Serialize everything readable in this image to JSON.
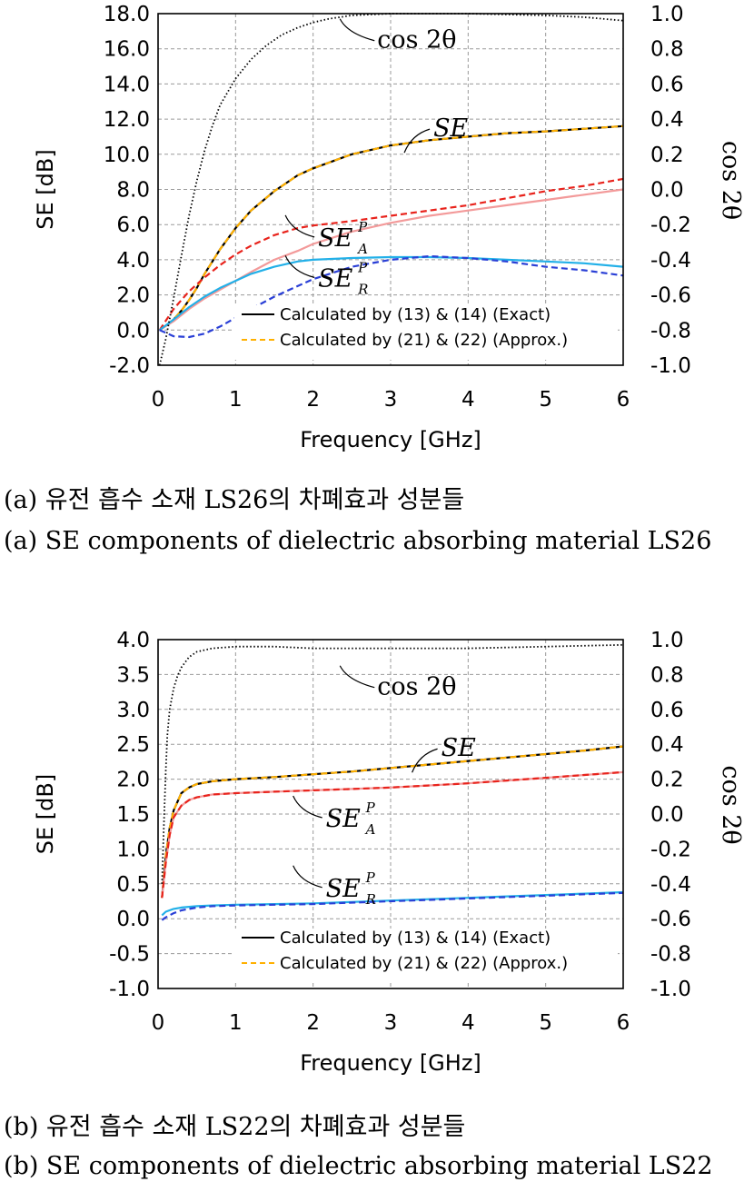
{
  "figures": [
    {
      "caption_ko": "(a) 유전 흡수 소재 LS26의 차폐효과 성분들",
      "caption_en": "(a) SE components of dielectric absorbing material LS26",
      "chart_data": {
        "type": "line",
        "xlabel": "Frequency [GHz]",
        "ylabel": "SE [dB]",
        "y2label": "cos 2θ",
        "xlim": [
          0,
          6
        ],
        "ylim": [
          -2,
          18
        ],
        "y2lim": [
          -1,
          1
        ],
        "xticks": [
          "0",
          "1",
          "2",
          "3",
          "4",
          "5",
          "6"
        ],
        "yticks": [
          "18.0",
          "16.0",
          "14.0",
          "12.0",
          "10.0",
          "8.0",
          "6.0",
          "4.0",
          "2.0",
          "0.0",
          "-2.0"
        ],
        "y2ticks": [
          "1.0",
          "0.8",
          "0.6",
          "0.4",
          "0.2",
          "0.0",
          "-0.2",
          "-0.4",
          "-0.6",
          "-0.8",
          "-1.0"
        ],
        "grid": true,
        "legend": {
          "placement": "bottom-right",
          "entries": [
            "Calculated by (13) & (14) (Exact)",
            "Calculated by (21) & (22) (Approx.)"
          ]
        },
        "annotations": [
          {
            "text": "cos 2θ",
            "x": 2.3,
            "y": 17.6
          },
          {
            "text": "SE",
            "x": 3.2,
            "y": 10.5
          },
          {
            "text": "SE_A^P",
            "x": 1.9,
            "y": 5.5
          },
          {
            "text": "SE_R^P",
            "x": 1.9,
            "y": 3.2
          }
        ],
        "series": [
          {
            "id": "se_exact",
            "color": "#000000",
            "style": "solid",
            "axis": "left",
            "x": [
              0.02,
              0.1,
              0.2,
              0.3,
              0.4,
              0.5,
              0.6,
              0.8,
              1,
              1.2,
              1.5,
              1.8,
              2,
              2.5,
              3,
              3.5,
              4,
              4.5,
              5,
              5.5,
              6
            ],
            "y": [
              0,
              0.25,
              0.6,
              1.1,
              1.7,
              2.4,
              3.2,
              4.6,
              5.8,
              6.8,
              7.9,
              8.8,
              9.2,
              10,
              10.5,
              10.8,
              11,
              11.2,
              11.3,
              11.45,
              11.6
            ]
          },
          {
            "id": "se_approx",
            "color": "#FFB000",
            "style": "dashed",
            "axis": "left",
            "x": [
              0.02,
              0.1,
              0.2,
              0.3,
              0.4,
              0.5,
              0.6,
              0.8,
              1,
              1.2,
              1.5,
              1.8,
              2,
              2.5,
              3,
              3.5,
              4,
              4.5,
              5,
              5.5,
              6
            ],
            "y": [
              0,
              0.25,
              0.6,
              1.1,
              1.7,
              2.4,
              3.2,
              4.6,
              5.8,
              6.8,
              7.9,
              8.8,
              9.2,
              10,
              10.5,
              10.8,
              11,
              11.2,
              11.3,
              11.45,
              11.6
            ]
          },
          {
            "id": "sea_exact",
            "color": "#F39A9A",
            "style": "solid",
            "axis": "left",
            "x": [
              0.02,
              0.2,
              0.4,
              0.6,
              0.8,
              1,
              1.2,
              1.5,
              1.8,
              2,
              2.5,
              3,
              3.5,
              4,
              4.5,
              5,
              5.5,
              6
            ],
            "y": [
              0,
              0.5,
              1.2,
              1.8,
              2.3,
              2.8,
              3.3,
              4,
              4.5,
              4.9,
              5.6,
              6.1,
              6.5,
              6.8,
              7.1,
              7.4,
              7.7,
              8.0
            ]
          },
          {
            "id": "sea_approx",
            "color": "#E8231C",
            "style": "dashed",
            "axis": "left",
            "x": [
              0.02,
              0.2,
              0.4,
              0.6,
              0.8,
              1,
              1.2,
              1.5,
              1.8,
              2,
              2.5,
              3,
              3.5,
              4,
              4.5,
              5,
              5.5,
              6
            ],
            "y": [
              0,
              1.2,
              2.2,
              3.0,
              3.7,
              4.3,
              4.8,
              5.4,
              5.8,
              5.95,
              6.2,
              6.5,
              6.8,
              7.1,
              7.5,
              7.9,
              8.2,
              8.6
            ]
          },
          {
            "id": "ser_exact",
            "color": "#22B0E8",
            "style": "solid",
            "axis": "left",
            "x": [
              0.02,
              0.2,
              0.4,
              0.6,
              0.8,
              1,
              1.2,
              1.5,
              1.8,
              2,
              2.5,
              3,
              3.5,
              4,
              4.5,
              5,
              5.5,
              6
            ],
            "y": [
              0,
              0.6,
              1.3,
              1.9,
              2.4,
              2.8,
              3.2,
              3.6,
              3.9,
              4.0,
              4.1,
              4.15,
              4.15,
              4.1,
              4.0,
              3.9,
              3.8,
              3.6
            ]
          },
          {
            "id": "ser_approx",
            "color": "#2A3FD6",
            "style": "dashed",
            "axis": "left",
            "x": [
              0.02,
              0.2,
              0.4,
              0.6,
              0.8,
              1,
              1.2,
              1.5,
              1.8,
              2,
              2.5,
              3,
              3.5,
              4,
              4.5,
              5,
              5.5,
              6
            ],
            "y": [
              0,
              -0.35,
              -0.4,
              -0.2,
              0.2,
              0.7,
              1.2,
              1.9,
              2.5,
              2.9,
              3.6,
              4.0,
              4.2,
              4.1,
              3.9,
              3.6,
              3.4,
              3.1
            ]
          },
          {
            "id": "cos2theta",
            "color": "#000000",
            "style": "dotted",
            "axis": "right",
            "x": [
              0.02,
              0.1,
              0.2,
              0.3,
              0.4,
              0.5,
              0.6,
              0.7,
              0.8,
              1,
              1.2,
              1.4,
              1.6,
              1.8,
              2,
              2.2,
              2.5,
              3,
              3.5,
              4,
              5,
              5.5,
              6
            ],
            "y": [
              -1.0,
              -0.85,
              -0.62,
              -0.38,
              -0.15,
              0.05,
              0.22,
              0.36,
              0.48,
              0.63,
              0.74,
              0.82,
              0.88,
              0.92,
              0.95,
              0.97,
              0.99,
              1.0,
              1.0,
              1.0,
              0.99,
              0.98,
              0.96
            ]
          }
        ]
      }
    },
    {
      "caption_ko": "(b) 유전 흡수 소재 LS22의 차폐효과 성분들",
      "caption_en": "(b) SE components of dielectric absorbing material LS22",
      "chart_data": {
        "type": "line",
        "xlabel": "Frequency [GHz]",
        "ylabel": "SE [dB]",
        "y2label": "cos 2θ",
        "xlim": [
          0,
          6
        ],
        "ylim": [
          -1,
          4
        ],
        "y2lim": [
          -1,
          1
        ],
        "xticks": [
          "0",
          "1",
          "2",
          "3",
          "4",
          "5",
          "6"
        ],
        "yticks": [
          "4.0",
          "3.5",
          "3.0",
          "2.5",
          "2.0",
          "1.5",
          "1.0",
          "0.5",
          "0.0",
          "-0.5",
          "-1.0"
        ],
        "y2ticks": [
          "1.0",
          "0.8",
          "0.6",
          "0.4",
          "0.2",
          "0.0",
          "-0.2",
          "-0.4",
          "-0.6",
          "-0.8",
          "-1.0"
        ],
        "grid": true,
        "legend": {
          "placement": "bottom-right",
          "entries": [
            "Calculated by (13) & (14) (Exact)",
            "Calculated by (21) & (22) (Approx.)"
          ]
        },
        "annotations": [
          {
            "text": "cos 2θ",
            "x": 2.3,
            "y": 3.6
          },
          {
            "text": "SE",
            "x": 3.3,
            "y": 2.2
          },
          {
            "text": "SE_A^P",
            "x": 2.0,
            "y": 1.5
          },
          {
            "text": "SE_R^P",
            "x": 2.0,
            "y": 0.5
          }
        ],
        "series": [
          {
            "id": "se_exact",
            "color": "#000000",
            "style": "solid",
            "axis": "left",
            "x": [
              0.05,
              0.1,
              0.15,
              0.2,
              0.3,
              0.4,
              0.5,
              0.7,
              1,
              1.5,
              2,
              2.5,
              3,
              3.5,
              4,
              4.5,
              5,
              5.5,
              6
            ],
            "y": [
              0.3,
              0.9,
              1.3,
              1.55,
              1.8,
              1.88,
              1.93,
              1.97,
              2.0,
              2.03,
              2.07,
              2.11,
              2.16,
              2.21,
              2.26,
              2.31,
              2.36,
              2.41,
              2.47
            ]
          },
          {
            "id": "se_approx",
            "color": "#FFB000",
            "style": "dashed",
            "axis": "left",
            "x": [
              0.05,
              0.1,
              0.15,
              0.2,
              0.3,
              0.4,
              0.5,
              0.7,
              1,
              1.5,
              2,
              2.5,
              3,
              3.5,
              4,
              4.5,
              5,
              5.5,
              6
            ],
            "y": [
              0.3,
              0.9,
              1.3,
              1.55,
              1.8,
              1.88,
              1.93,
              1.97,
              2.0,
              2.03,
              2.07,
              2.11,
              2.16,
              2.21,
              2.26,
              2.31,
              2.36,
              2.41,
              2.47
            ]
          },
          {
            "id": "sea_exact",
            "color": "#F39A9A",
            "style": "solid",
            "axis": "left",
            "x": [
              0.05,
              0.1,
              0.15,
              0.2,
              0.3,
              0.4,
              0.5,
              0.7,
              1,
              1.5,
              2,
              2.5,
              3,
              3.5,
              4,
              4.5,
              5,
              5.5,
              6
            ],
            "y": [
              0.3,
              0.8,
              1.2,
              1.45,
              1.62,
              1.7,
              1.74,
              1.78,
              1.8,
              1.82,
              1.84,
              1.86,
              1.88,
              1.91,
              1.94,
              1.98,
              2.02,
              2.06,
              2.1
            ]
          },
          {
            "id": "sea_approx",
            "color": "#E8231C",
            "style": "dashed",
            "axis": "left",
            "x": [
              0.05,
              0.1,
              0.15,
              0.2,
              0.3,
              0.4,
              0.5,
              0.7,
              1,
              1.5,
              2,
              2.5,
              3,
              3.5,
              4,
              4.5,
              5,
              5.5,
              6
            ],
            "y": [
              0.3,
              0.8,
              1.2,
              1.45,
              1.62,
              1.7,
              1.74,
              1.78,
              1.8,
              1.82,
              1.84,
              1.86,
              1.88,
              1.91,
              1.94,
              1.98,
              2.02,
              2.06,
              2.1
            ]
          },
          {
            "id": "ser_exact",
            "color": "#22B0E8",
            "style": "solid",
            "axis": "left",
            "x": [
              0.05,
              0.1,
              0.2,
              0.3,
              0.5,
              0.7,
              1,
              1.5,
              2,
              2.5,
              3,
              3.5,
              4,
              4.5,
              5,
              5.5,
              6
            ],
            "y": [
              0.05,
              0.1,
              0.14,
              0.16,
              0.18,
              0.19,
              0.2,
              0.21,
              0.22,
              0.24,
              0.26,
              0.28,
              0.3,
              0.32,
              0.34,
              0.36,
              0.38
            ]
          },
          {
            "id": "ser_approx",
            "color": "#2A3FD6",
            "style": "dashed",
            "axis": "left",
            "x": [
              0.05,
              0.1,
              0.2,
              0.3,
              0.5,
              0.7,
              1,
              1.5,
              2,
              2.5,
              3,
              3.5,
              4,
              4.5,
              5,
              5.5,
              6
            ],
            "y": [
              -0.02,
              0.02,
              0.08,
              0.12,
              0.16,
              0.18,
              0.19,
              0.2,
              0.21,
              0.23,
              0.25,
              0.27,
              0.29,
              0.31,
              0.33,
              0.35,
              0.37
            ]
          },
          {
            "id": "cos2theta",
            "color": "#000000",
            "style": "dotted",
            "axis": "right",
            "x": [
              0.05,
              0.08,
              0.1,
              0.12,
              0.15,
              0.2,
              0.25,
              0.3,
              0.4,
              0.5,
              0.7,
              1,
              1.5,
              2,
              2.5,
              3,
              4,
              5,
              6
            ],
            "y": [
              -0.4,
              0.0,
              0.25,
              0.45,
              0.6,
              0.72,
              0.79,
              0.84,
              0.9,
              0.93,
              0.95,
              0.96,
              0.96,
              0.95,
              0.95,
              0.95,
              0.95,
              0.96,
              0.97
            ]
          }
        ]
      }
    }
  ]
}
